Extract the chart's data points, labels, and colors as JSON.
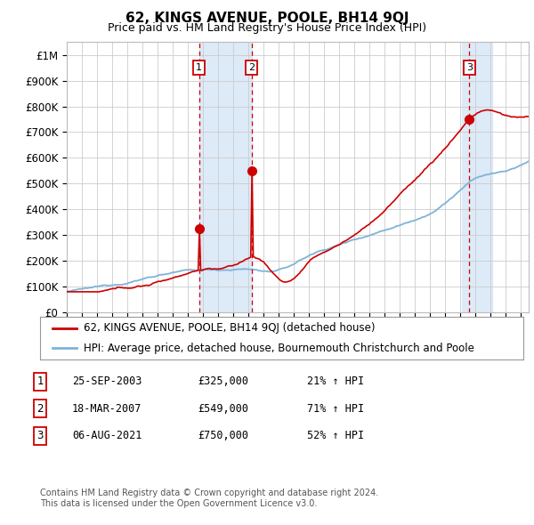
{
  "title": "62, KINGS AVENUE, POOLE, BH14 9QJ",
  "subtitle": "Price paid vs. HM Land Registry's House Price Index (HPI)",
  "ylabel_ticks": [
    "£0",
    "£100K",
    "£200K",
    "£300K",
    "£400K",
    "£500K",
    "£600K",
    "£700K",
    "£800K",
    "£900K",
    "£1M"
  ],
  "ytick_values": [
    0,
    100000,
    200000,
    300000,
    400000,
    500000,
    600000,
    700000,
    800000,
    900000,
    1000000
  ],
  "ylim": [
    0,
    1050000
  ],
  "xlim_start": 1995.0,
  "xlim_end": 2025.5,
  "sale_dates": [
    2003.73,
    2007.21,
    2021.59
  ],
  "sale_prices": [
    325000,
    549000,
    750000
  ],
  "sale_labels": [
    "1",
    "2",
    "3"
  ],
  "sale_info": [
    {
      "label": "1",
      "date": "25-SEP-2003",
      "price": "£325,000",
      "pct": "21% ↑ HPI"
    },
    {
      "label": "2",
      "date": "18-MAR-2007",
      "price": "£549,000",
      "pct": "71% ↑ HPI"
    },
    {
      "label": "3",
      "date": "06-AUG-2021",
      "price": "£750,000",
      "pct": "52% ↑ HPI"
    }
  ],
  "legend_line1": "62, KINGS AVENUE, POOLE, BH14 9QJ (detached house)",
  "legend_line2": "HPI: Average price, detached house, Bournemouth Christchurch and Poole",
  "footer1": "Contains HM Land Registry data © Crown copyright and database right 2024.",
  "footer2": "This data is licensed under the Open Government Licence v3.0.",
  "hpi_color": "#7fb3d8",
  "price_color": "#cc0000",
  "highlight_color": "#ddeaf7",
  "vline_color": "#cc0000",
  "background_color": "#ffffff",
  "grid_color": "#cccccc"
}
